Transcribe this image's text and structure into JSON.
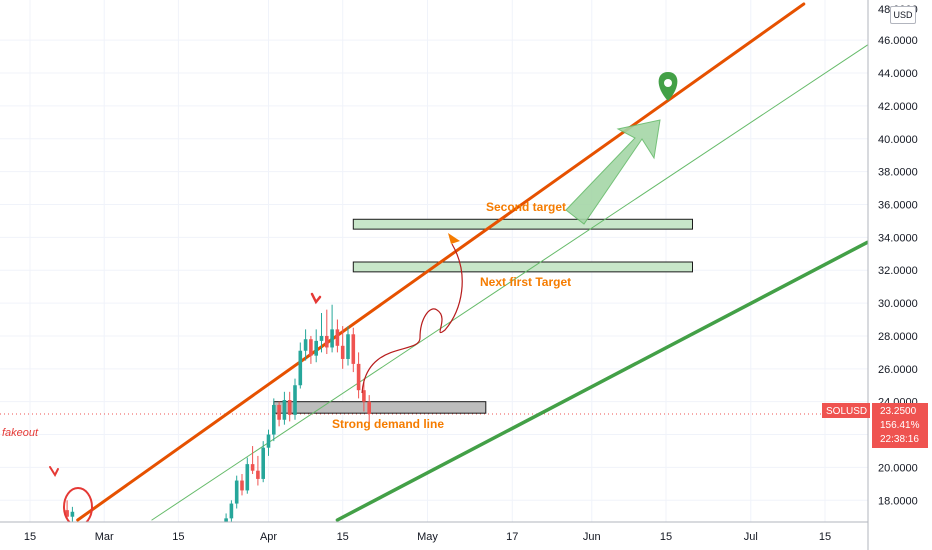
{
  "currency_label": "USD",
  "price_scale_top_partial": "48.0000",
  "colors": {
    "up": "#26a69a",
    "down": "#ef5350",
    "channel_orange": "#e65100",
    "trend_green": "#43a047",
    "annotation": "#f57c00",
    "badge": "#ef5350"
  },
  "symbol_badge": {
    "symbol": "SOLUSD",
    "price": "23.2500",
    "change": "156.41%",
    "countdown": "22:38:16"
  },
  "chart_data": {
    "type": "candlestick",
    "x_axis": {
      "tick_labels": [
        "15",
        "Mar",
        "15",
        "Apr",
        "15",
        "May",
        "17",
        "Jun",
        "15",
        "Jul",
        "15"
      ],
      "tick_dates": [
        "2021-02-15",
        "2021-03-01",
        "2021-03-15",
        "2021-04-01",
        "2021-04-15",
        "2021-05-01",
        "2021-05-17",
        "2021-06-01",
        "2021-06-15",
        "2021-07-01",
        "2021-07-15"
      ]
    },
    "y_axis": {
      "tick_labels": [
        "18.0000",
        "20.0000",
        "22.0000",
        "24.0000",
        "26.0000",
        "28.0000",
        "30.0000",
        "32.0000",
        "34.0000",
        "36.0000",
        "38.0000",
        "40.0000",
        "42.0000",
        "44.0000",
        "46.0000"
      ],
      "range": [
        16.8,
        48.2
      ]
    },
    "candles": [
      {
        "date": "2021-02-22",
        "o": 17.4,
        "h": 18.0,
        "l": 16.8,
        "c": 17.0
      },
      {
        "date": "2021-02-23",
        "o": 17.0,
        "h": 17.6,
        "l": 16.6,
        "c": 17.3
      },
      {
        "date": "2021-03-24",
        "o": 16.3,
        "h": 17.2,
        "l": 16.0,
        "c": 16.9
      },
      {
        "date": "2021-03-25",
        "o": 16.9,
        "h": 18.0,
        "l": 16.6,
        "c": 17.8
      },
      {
        "date": "2021-03-26",
        "o": 17.8,
        "h": 19.5,
        "l": 17.5,
        "c": 19.2
      },
      {
        "date": "2021-03-27",
        "o": 19.2,
        "h": 19.6,
        "l": 18.3,
        "c": 18.6
      },
      {
        "date": "2021-03-28",
        "o": 18.6,
        "h": 20.6,
        "l": 18.4,
        "c": 20.2
      },
      {
        "date": "2021-03-29",
        "o": 20.2,
        "h": 21.3,
        "l": 19.6,
        "c": 19.8
      },
      {
        "date": "2021-03-30",
        "o": 19.8,
        "h": 20.7,
        "l": 18.9,
        "c": 19.3
      },
      {
        "date": "2021-03-31",
        "o": 19.3,
        "h": 21.6,
        "l": 19.1,
        "c": 21.2
      },
      {
        "date": "2021-04-01",
        "o": 21.2,
        "h": 22.3,
        "l": 20.7,
        "c": 22.0
      },
      {
        "date": "2021-04-02",
        "o": 22.0,
        "h": 24.2,
        "l": 21.6,
        "c": 23.8
      },
      {
        "date": "2021-04-03",
        "o": 23.8,
        "h": 24.0,
        "l": 22.5,
        "c": 22.9
      },
      {
        "date": "2021-04-04",
        "o": 22.9,
        "h": 24.6,
        "l": 22.6,
        "c": 24.1
      },
      {
        "date": "2021-04-05",
        "o": 24.1,
        "h": 24.6,
        "l": 22.8,
        "c": 23.2
      },
      {
        "date": "2021-04-06",
        "o": 23.2,
        "h": 25.4,
        "l": 22.9,
        "c": 25.0
      },
      {
        "date": "2021-04-07",
        "o": 25.0,
        "h": 27.6,
        "l": 24.8,
        "c": 27.1
      },
      {
        "date": "2021-04-08",
        "o": 27.1,
        "h": 28.4,
        "l": 26.5,
        "c": 27.8
      },
      {
        "date": "2021-04-09",
        "o": 27.8,
        "h": 28.0,
        "l": 26.3,
        "c": 26.8
      },
      {
        "date": "2021-04-10",
        "o": 26.8,
        "h": 28.4,
        "l": 26.4,
        "c": 27.7
      },
      {
        "date": "2021-04-11",
        "o": 27.7,
        "h": 29.4,
        "l": 27.0,
        "c": 28.0
      },
      {
        "date": "2021-04-12",
        "o": 28.0,
        "h": 29.6,
        "l": 26.9,
        "c": 27.3
      },
      {
        "date": "2021-04-13",
        "o": 27.3,
        "h": 29.9,
        "l": 27.0,
        "c": 28.4
      },
      {
        "date": "2021-04-14",
        "o": 28.4,
        "h": 29.0,
        "l": 27.0,
        "c": 27.4
      },
      {
        "date": "2021-04-15",
        "o": 27.4,
        "h": 28.6,
        "l": 26.0,
        "c": 26.6
      },
      {
        "date": "2021-04-16",
        "o": 26.6,
        "h": 28.6,
        "l": 26.2,
        "c": 28.1
      },
      {
        "date": "2021-04-17",
        "o": 28.1,
        "h": 28.5,
        "l": 25.8,
        "c": 26.3
      },
      {
        "date": "2021-04-18",
        "o": 26.3,
        "h": 27.0,
        "l": 24.2,
        "c": 24.7
      },
      {
        "date": "2021-04-19",
        "o": 24.7,
        "h": 25.4,
        "l": 23.4,
        "c": 24.0
      },
      {
        "date": "2021-04-20",
        "o": 24.0,
        "h": 24.4,
        "l": 22.8,
        "c": 23.25
      }
    ],
    "trendlines": [
      {
        "name": "orange-channel",
        "from": {
          "date": "2021-02-24",
          "price": 16.8
        },
        "to": {
          "date": "2021-07-11",
          "price": 48.2
        }
      },
      {
        "name": "thin-green-trend",
        "from": {
          "date": "2021-03-10",
          "price": 16.8
        },
        "to": {
          "date": "2021-07-23",
          "price": 45.7
        }
      },
      {
        "name": "thick-green-trend",
        "from": {
          "date": "2021-04-14",
          "price": 16.8
        },
        "to": {
          "date": "2021-07-23",
          "price": 33.7
        }
      }
    ],
    "zones": [
      {
        "name": "second-target-zone",
        "from": "2021-04-17",
        "to": "2021-06-20",
        "low": 34.5,
        "high": 35.1,
        "fill": "#c8e6c9"
      },
      {
        "name": "first-target-zone",
        "from": "2021-04-17",
        "to": "2021-06-20",
        "low": 31.9,
        "high": 32.5,
        "fill": "#c8e6c9"
      },
      {
        "name": "demand-zone",
        "from": "2021-04-02",
        "to": "2021-05-12",
        "low": 23.3,
        "high": 24.0,
        "fill": "#bdbdbd"
      }
    ],
    "last_price_line": 23.25,
    "annotations": [
      {
        "text": "Second target",
        "date": "2021-05-21",
        "price": 35.8
      },
      {
        "text": "Next first Target",
        "date": "2021-05-15",
        "price": 30.9
      },
      {
        "text": "Strong demand line",
        "date": "2021-04-28",
        "price": 22.4
      },
      {
        "text": "fakeout",
        "date": "2021-02-11",
        "price": 22.0
      }
    ]
  }
}
